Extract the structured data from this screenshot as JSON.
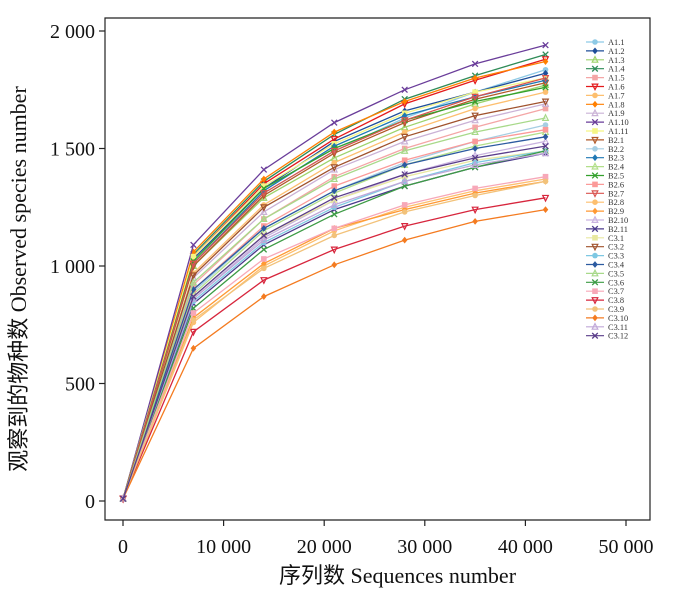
{
  "chart_data": {
    "type": "line",
    "title": "",
    "xlabel": "序列数  Sequences number",
    "ylabel": "观察到的物种数  Observed species number",
    "xlim": [
      0,
      50000
    ],
    "ylim": [
      0,
      2000
    ],
    "x_ticks": [
      0,
      10000,
      20000,
      30000,
      40000,
      50000
    ],
    "x_tick_labels": [
      "0",
      "10 000",
      "20 000",
      "30 000",
      "40 000",
      "50 000"
    ],
    "y_ticks": [
      0,
      500,
      1000,
      1500,
      2000
    ],
    "y_tick_labels": [
      "0",
      "500",
      "1 000",
      "1 500",
      "2 000"
    ],
    "grid": false,
    "legend_position": "top-right",
    "x": [
      10,
      7000,
      14000,
      21000,
      28000,
      35000,
      42000
    ],
    "series": [
      {
        "name": "A1.1",
        "color": "#8ecae6",
        "values": [
          10,
          1010,
          1310,
          1490,
          1630,
          1740,
          1835
        ]
      },
      {
        "name": "A1.2",
        "color": "#1f4e99",
        "values": [
          10,
          1030,
          1330,
          1530,
          1660,
          1740,
          1820
        ]
      },
      {
        "name": "A1.3",
        "color": "#9dd36b",
        "values": [
          10,
          1000,
          1290,
          1460,
          1590,
          1690,
          1770
        ]
      },
      {
        "name": "A1.4",
        "color": "#2e8b57",
        "values": [
          10,
          1050,
          1360,
          1560,
          1710,
          1810,
          1900
        ]
      },
      {
        "name": "A1.5",
        "color": "#f4a6a6",
        "values": [
          10,
          920,
          1200,
          1380,
          1500,
          1590,
          1670
        ]
      },
      {
        "name": "A1.6",
        "color": "#e31a1c",
        "values": [
          10,
          1040,
          1350,
          1540,
          1690,
          1790,
          1880
        ]
      },
      {
        "name": "A1.7",
        "color": "#fdbf6f",
        "values": [
          10,
          970,
          1260,
          1440,
          1570,
          1670,
          1740
        ]
      },
      {
        "name": "A1.8",
        "color": "#ff7f00",
        "values": [
          10,
          1060,
          1370,
          1570,
          1700,
          1800,
          1870
        ]
      },
      {
        "name": "A1.9",
        "color": "#cab2d6",
        "values": [
          10,
          950,
          1230,
          1410,
          1530,
          1620,
          1690
        ]
      },
      {
        "name": "A1.10",
        "color": "#6a3d9a",
        "values": [
          10,
          1090,
          1410,
          1610,
          1750,
          1860,
          1940
        ]
      },
      {
        "name": "A1.11",
        "color": "#f5f584",
        "values": [
          10,
          1040,
          1340,
          1520,
          1650,
          1740,
          1800
        ]
      },
      {
        "name": "B2.1",
        "color": "#b15928",
        "values": [
          10,
          1000,
          1300,
          1480,
          1610,
          1710,
          1780
        ]
      },
      {
        "name": "B2.2",
        "color": "#a6cee3",
        "values": [
          10,
          890,
          1160,
          1320,
          1440,
          1530,
          1600
        ]
      },
      {
        "name": "B2.3",
        "color": "#1f78b4",
        "values": [
          10,
          1010,
          1320,
          1510,
          1640,
          1720,
          1790
        ]
      },
      {
        "name": "B2.4",
        "color": "#b2df8a",
        "values": [
          10,
          880,
          1150,
          1310,
          1430,
          1510,
          1570
        ]
      },
      {
        "name": "B2.5",
        "color": "#33a02c",
        "values": [
          10,
          1020,
          1330,
          1500,
          1620,
          1700,
          1760
        ]
      },
      {
        "name": "B2.6",
        "color": "#fb9a99",
        "values": [
          10,
          900,
          1170,
          1340,
          1450,
          1530,
          1580
        ]
      },
      {
        "name": "B2.7",
        "color": "#d9534f",
        "values": [
          10,
          1010,
          1310,
          1490,
          1620,
          1720,
          1800
        ]
      },
      {
        "name": "B2.8",
        "color": "#fdbf6f",
        "values": [
          10,
          760,
          1000,
          1150,
          1250,
          1320,
          1370
        ]
      },
      {
        "name": "B2.9",
        "color": "#ff9933",
        "values": [
          10,
          780,
          1010,
          1160,
          1240,
          1310,
          1360
        ]
      },
      {
        "name": "B2.10",
        "color": "#c9b3e0",
        "values": [
          10,
          860,
          1120,
          1280,
          1390,
          1470,
          1530
        ]
      },
      {
        "name": "B2.11",
        "color": "#4b3a8c",
        "values": [
          10,
          840,
          1090,
          1240,
          1340,
          1420,
          1480
        ]
      },
      {
        "name": "C3.1",
        "color": "#e8e8a0",
        "values": [
          10,
          870,
          1130,
          1280,
          1380,
          1450,
          1490
        ]
      },
      {
        "name": "C3.2",
        "color": "#a0522d",
        "values": [
          10,
          960,
          1250,
          1420,
          1550,
          1640,
          1700
        ]
      },
      {
        "name": "C3.3",
        "color": "#7ec8e3",
        "values": [
          10,
          850,
          1100,
          1250,
          1360,
          1440,
          1490
        ]
      },
      {
        "name": "C3.4",
        "color": "#2c5aa0",
        "values": [
          10,
          900,
          1160,
          1320,
          1430,
          1500,
          1550
        ]
      },
      {
        "name": "C3.5",
        "color": "#a8d98a",
        "values": [
          10,
          930,
          1200,
          1370,
          1490,
          1570,
          1630
        ]
      },
      {
        "name": "C3.6",
        "color": "#3d9b45",
        "values": [
          10,
          820,
          1070,
          1220,
          1340,
          1420,
          1490
        ]
      },
      {
        "name": "C3.7",
        "color": "#f7a8b8",
        "values": [
          10,
          800,
          1030,
          1160,
          1260,
          1330,
          1380
        ]
      },
      {
        "name": "C3.8",
        "color": "#d7263d",
        "values": [
          10,
          720,
          940,
          1070,
          1170,
          1240,
          1290
        ]
      },
      {
        "name": "C3.9",
        "color": "#f2c27a",
        "values": [
          10,
          770,
          990,
          1130,
          1230,
          1300,
          1360
        ]
      },
      {
        "name": "C3.10",
        "color": "#f47b20",
        "values": [
          10,
          650,
          870,
          1005,
          1110,
          1190,
          1240
        ]
      },
      {
        "name": "C3.11",
        "color": "#c0a8d8",
        "values": [
          10,
          860,
          1110,
          1260,
          1360,
          1430,
          1480
        ]
      },
      {
        "name": "C3.12",
        "color": "#5a3d8a",
        "values": [
          10,
          870,
          1130,
          1290,
          1390,
          1460,
          1510
        ]
      }
    ]
  }
}
